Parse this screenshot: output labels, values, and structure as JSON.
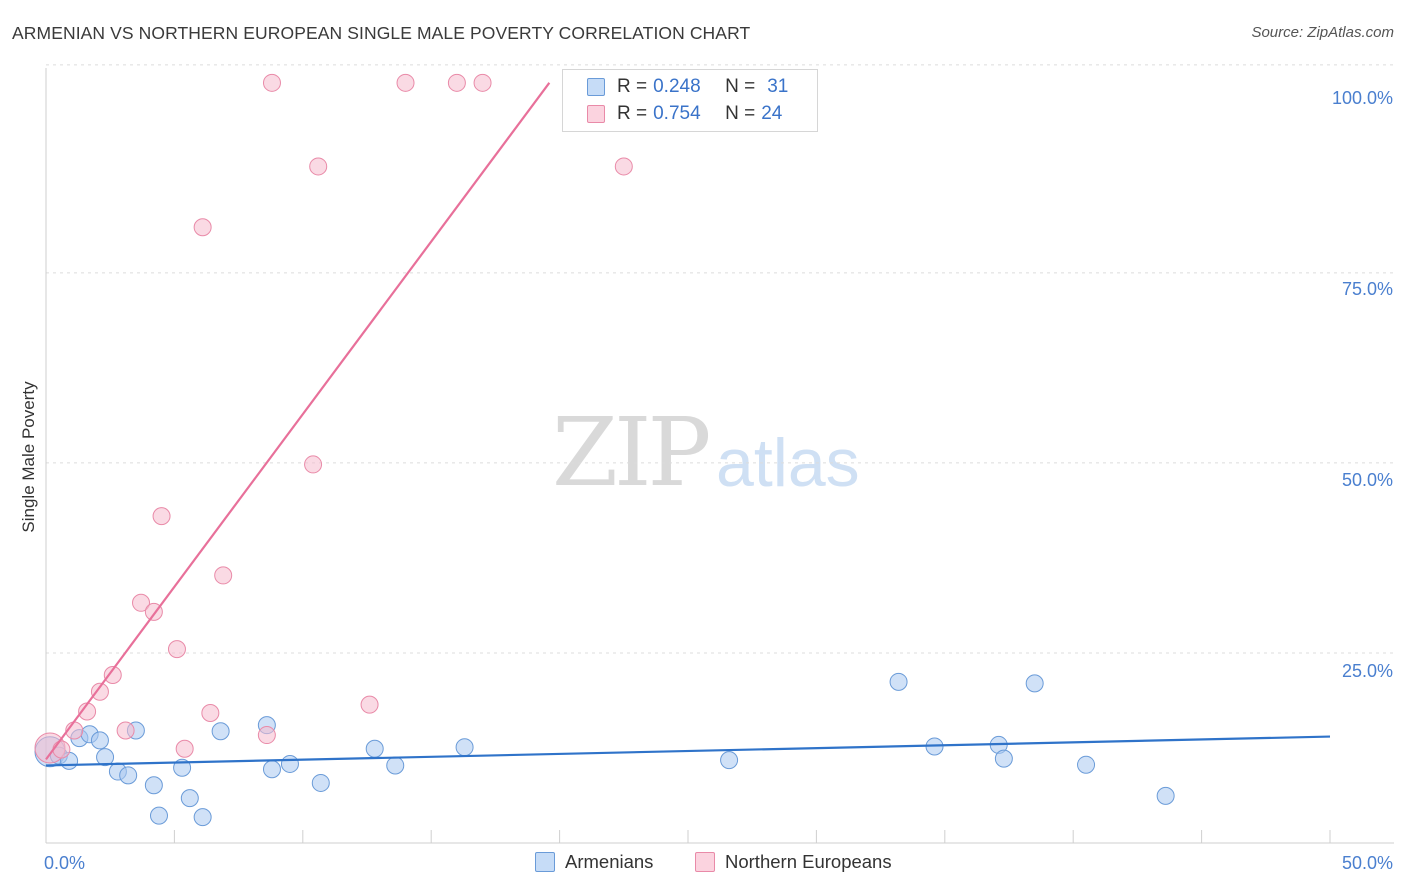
{
  "title": "ARMENIAN VS NORTHERN EUROPEAN SINGLE MALE POVERTY CORRELATION CHART",
  "source": "Source: ZipAtlas.com",
  "watermark": {
    "zip": "ZIP",
    "atlas": "atlas"
  },
  "legend": {
    "armenians": {
      "r_label": "R = ",
      "r": "0.248",
      "n_label": "N = ",
      "n": "31",
      "color": "#a9c9f0"
    },
    "northern": {
      "r_label": "R = ",
      "r": "0.754",
      "n_label": "N = ",
      "n": "24",
      "color": "#f6bccd"
    }
  },
  "bottom_legend": {
    "armenians": "Armenians",
    "northern": "Northern Europeans"
  },
  "chart_data": {
    "type": "scatter",
    "title": "ARMENIAN VS NORTHERN EUROPEAN SINGLE MALE POVERTY CORRELATION CHART",
    "xlabel": "",
    "ylabel": "Single Male Poverty",
    "xlim": [
      0,
      50
    ],
    "ylim": [
      0,
      100
    ],
    "x_tick_labels": [
      "0.0%",
      "50.0%"
    ],
    "y_tick_labels": [
      "25.0%",
      "50.0%",
      "75.0%",
      "100.0%"
    ],
    "y_tick_values": [
      25,
      50,
      75,
      100
    ],
    "grid": true,
    "series": [
      {
        "name": "Armenians",
        "color": "#a9c9f0",
        "stroke": "#6a9bd8",
        "line_color": "#2f73c9",
        "trend": {
          "x0": 0,
          "y0": 10.2,
          "x1": 50,
          "y1": 14.0
        },
        "points": [
          [
            0.0,
            12.0
          ],
          [
            0.5,
            11.5
          ],
          [
            0.9,
            10.8
          ],
          [
            1.3,
            13.8
          ],
          [
            1.7,
            14.3
          ],
          [
            2.1,
            13.5
          ],
          [
            2.3,
            11.3
          ],
          [
            2.8,
            9.4
          ],
          [
            3.2,
            8.9
          ],
          [
            3.5,
            14.8
          ],
          [
            4.2,
            7.6
          ],
          [
            4.4,
            3.6
          ],
          [
            5.3,
            9.9
          ],
          [
            5.6,
            5.9
          ],
          [
            6.1,
            3.4
          ],
          [
            6.8,
            14.7
          ],
          [
            8.6,
            15.5
          ],
          [
            8.8,
            9.7
          ],
          [
            9.5,
            10.4
          ],
          [
            10.7,
            7.9
          ],
          [
            12.8,
            12.4
          ],
          [
            13.6,
            10.2
          ],
          [
            16.3,
            12.6
          ],
          [
            26.6,
            10.9
          ],
          [
            33.2,
            21.2
          ],
          [
            34.6,
            12.7
          ],
          [
            37.1,
            12.9
          ],
          [
            37.3,
            11.1
          ],
          [
            38.5,
            21.0
          ],
          [
            40.5,
            10.3
          ],
          [
            43.6,
            6.2
          ]
        ]
      },
      {
        "name": "Northern Europeans",
        "color": "#f6bccd",
        "stroke": "#e98aa8",
        "line_color": "#e8709a",
        "trend": {
          "x0": 0,
          "y0": 11.0,
          "x1": 19.6,
          "y1": 100.0
        },
        "points": [
          [
            0.0,
            12.5
          ],
          [
            0.6,
            12.3
          ],
          [
            1.1,
            14.8
          ],
          [
            1.6,
            17.3
          ],
          [
            2.1,
            19.9
          ],
          [
            2.6,
            22.1
          ],
          [
            3.1,
            14.8
          ],
          [
            3.7,
            31.6
          ],
          [
            4.2,
            30.4
          ],
          [
            4.5,
            43.0
          ],
          [
            5.1,
            25.5
          ],
          [
            5.4,
            12.4
          ],
          [
            6.1,
            81.0
          ],
          [
            6.4,
            17.1
          ],
          [
            6.9,
            35.2
          ],
          [
            8.6,
            14.2
          ],
          [
            8.8,
            100.0
          ],
          [
            10.4,
            49.8
          ],
          [
            10.6,
            89.0
          ],
          [
            12.6,
            18.2
          ],
          [
            14.0,
            100.0
          ],
          [
            16.0,
            100.0
          ],
          [
            17.0,
            100.0
          ],
          [
            22.5,
            89.0
          ]
        ]
      }
    ]
  }
}
